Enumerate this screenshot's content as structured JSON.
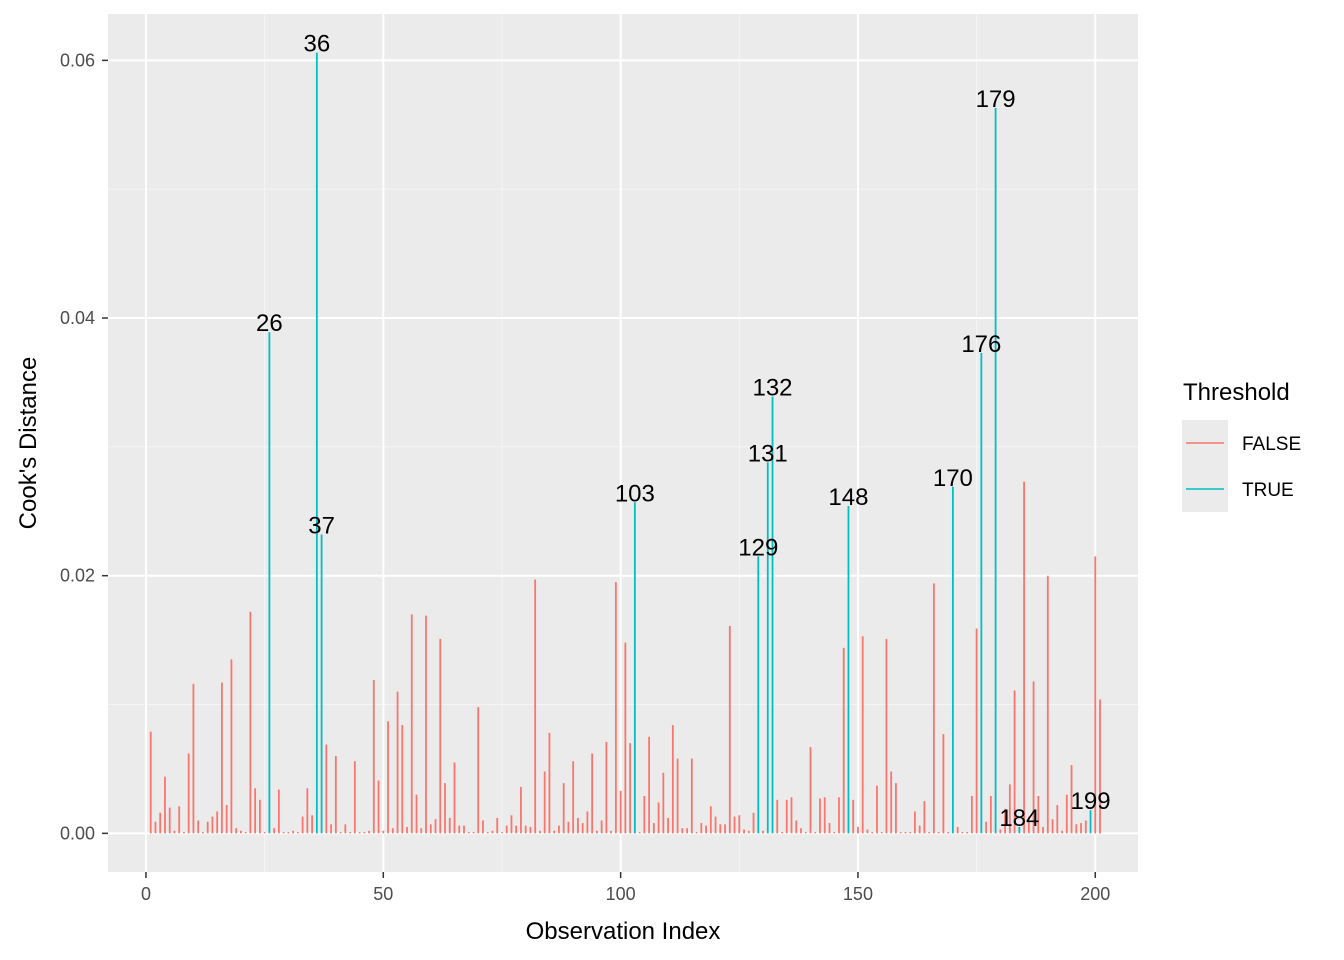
{
  "chart_data": {
    "type": "bar",
    "title": "",
    "xlabel": "Observation Index",
    "ylabel": "Cook's Distance",
    "xlim": [
      -8,
      209
    ],
    "ylim": [
      -0.003,
      0.0636
    ],
    "x_ticks": [
      0,
      50,
      100,
      150,
      200
    ],
    "x_tick_labels": [
      "0",
      "50",
      "100",
      "150",
      "200"
    ],
    "y_ticks": [
      0.0,
      0.02,
      0.04,
      0.06
    ],
    "y_tick_labels": [
      "0.00",
      "0.02",
      "0.04",
      "0.06"
    ],
    "grid": true,
    "legend": {
      "title": "Threshold",
      "placement": "right",
      "entries": [
        {
          "label": "FALSE",
          "color": "#F8766D"
        },
        {
          "label": "TRUE",
          "color": "#00BFC4"
        }
      ]
    },
    "colors": {
      "false": "#F8766D",
      "true": "#00BFC4",
      "panel": "#EBEBEB",
      "grid_major": "#FFFFFF",
      "grid_minor": "#F5F5F5"
    },
    "values": [
      0.0079,
      0.0009,
      0.0016,
      0.0044,
      0.002,
      0.0002,
      0.0021,
      0.0001,
      0.0062,
      0.0116,
      0.001,
      0.0001,
      0.0009,
      0.0013,
      0.0017,
      0.0117,
      0.0022,
      0.0135,
      0.0004,
      0.0002,
      0.0001,
      0.0172,
      0.0035,
      0.0026,
      0.0001,
      0.0389,
      0.0004,
      0.0034,
      0.0001,
      0.0001,
      0.0002,
      0.0001,
      0.0013,
      0.0035,
      0.0014,
      0.0606,
      0.0232,
      0.0069,
      0.0007,
      0.006,
      0.0001,
      0.0007,
      0.0001,
      0.0056,
      0.0001,
      0.0001,
      0.0002,
      0.0119,
      0.0041,
      0.0002,
      0.0087,
      0.0004,
      0.011,
      0.0084,
      0.0005,
      0.017,
      0.003,
      0.0004,
      0.0169,
      0.0007,
      0.0011,
      0.0151,
      0.0039,
      0.0012,
      0.0055,
      0.0006,
      0.0006,
      0.0001,
      0.0001,
      0.0098,
      0.001,
      0.0001,
      0.0002,
      0.0012,
      0.0001,
      0.0006,
      0.0014,
      0.0006,
      0.0036,
      0.0006,
      0.0005,
      0.0197,
      0.0002,
      0.0048,
      0.0078,
      0.0002,
      0.0006,
      0.0039,
      0.0009,
      0.0056,
      0.0012,
      0.0008,
      0.0017,
      0.0062,
      0.0002,
      0.001,
      0.0071,
      0.0002,
      0.0195,
      0.0033,
      0.0148,
      0.007,
      0.0257,
      0.0001,
      0.0029,
      0.0075,
      0.0008,
      0.0024,
      0.0047,
      0.0012,
      0.0084,
      0.0058,
      0.0004,
      0.0004,
      0.0058,
      0.0001,
      0.0008,
      0.0006,
      0.0021,
      0.0013,
      0.0007,
      0.0007,
      0.0161,
      0.0013,
      0.0014,
      0.0003,
      0.0002,
      0.0016,
      0.0215,
      0.0002,
      0.0288,
      0.0339,
      0.0026,
      0.0001,
      0.0026,
      0.0028,
      0.001,
      0.0004,
      0.0001,
      0.0067,
      0.0001,
      0.0027,
      0.0028,
      0.0008,
      0.0001,
      0.0028,
      0.0144,
      0.0254,
      0.0026,
      0.0005,
      0.0153,
      0.0003,
      0.0001,
      0.0037,
      0.0001,
      0.0151,
      0.0048,
      0.0039,
      0.0001,
      0.0001,
      0.0001,
      0.0017,
      0.0006,
      0.0025,
      0.0001,
      0.0194,
      0.0001,
      0.0077,
      0.0001,
      0.0269,
      0.0005,
      0.0001,
      0.0001,
      0.0029,
      0.0159,
      0.0373,
      0.0009,
      0.0029,
      0.0563,
      0.0003,
      0.0019,
      0.0038,
      0.0111,
      0.0005,
      0.0273,
      0.0013,
      0.0118,
      0.0029,
      0.0005,
      0.02,
      0.0011,
      0.0022,
      0.0002,
      0.003,
      0.0053,
      0.0007,
      0.0008,
      0.001,
      0.0018,
      0.0215,
      0.0104
    ],
    "threshold_true_indices": [
      26,
      36,
      37,
      103,
      129,
      131,
      132,
      148,
      170,
      176,
      179,
      184,
      199
    ],
    "annotations": [
      "26",
      "36",
      "37",
      "103",
      "129",
      "131",
      "132",
      "148",
      "170",
      "176",
      "179",
      "184",
      "199"
    ]
  }
}
